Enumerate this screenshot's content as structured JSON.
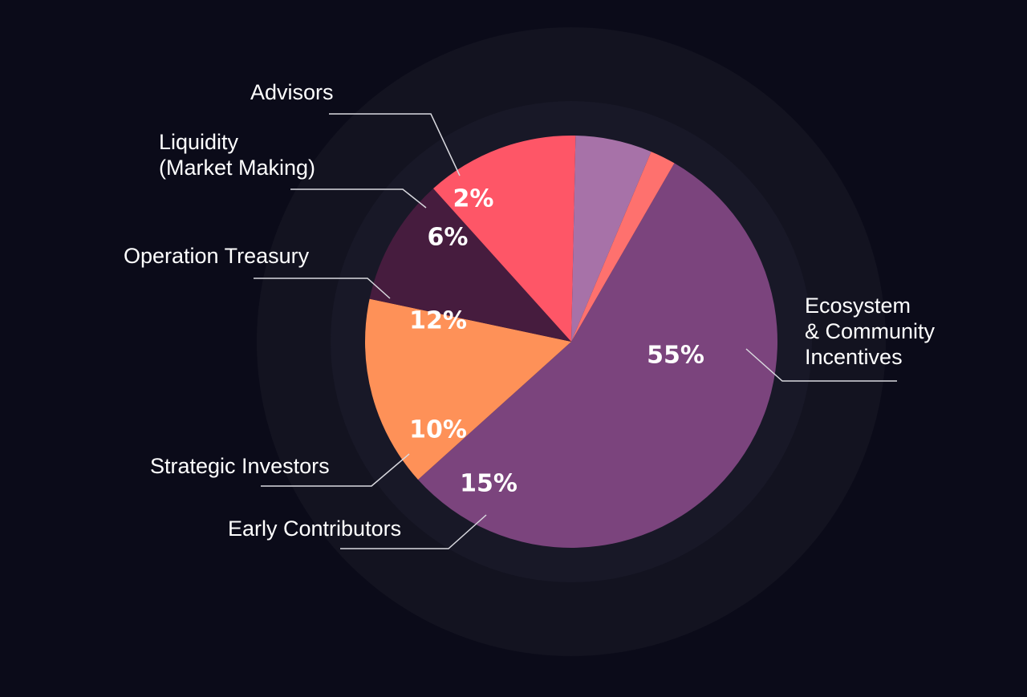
{
  "chart_data": {
    "type": "pie",
    "start_angle_deg": 30,
    "direction": "clockwise",
    "slices": [
      {
        "label": "Ecosystem & Community Incentives",
        "label_lines": [
          "Ecosystem",
          "& Community",
          "Incentives"
        ],
        "value": 55,
        "value_label": "55%",
        "color": "#7b447d"
      },
      {
        "label": "Early Contributors",
        "label_lines": [
          "Early Contributors"
        ],
        "value": 15,
        "value_label": "15%",
        "color": "#fe9158"
      },
      {
        "label": "Strategic Investors",
        "label_lines": [
          "Strategic Investors"
        ],
        "value": 10,
        "value_label": "10%",
        "color": "#461c3e"
      },
      {
        "label": "Operation Treasury",
        "label_lines": [
          "Operation Treasury"
        ],
        "value": 12,
        "value_label": "12%",
        "color": "#fe5667"
      },
      {
        "label": "Liquidity (Market Making)",
        "label_lines": [
          "Liquidity",
          "(Market Making)"
        ],
        "value": 6,
        "value_label": "6%",
        "color": "#a772a8"
      },
      {
        "label": "Advisors",
        "label_lines": [
          "Advisors"
        ],
        "value": 2,
        "value_label": "2%",
        "color": "#fe716e"
      }
    ]
  }
}
